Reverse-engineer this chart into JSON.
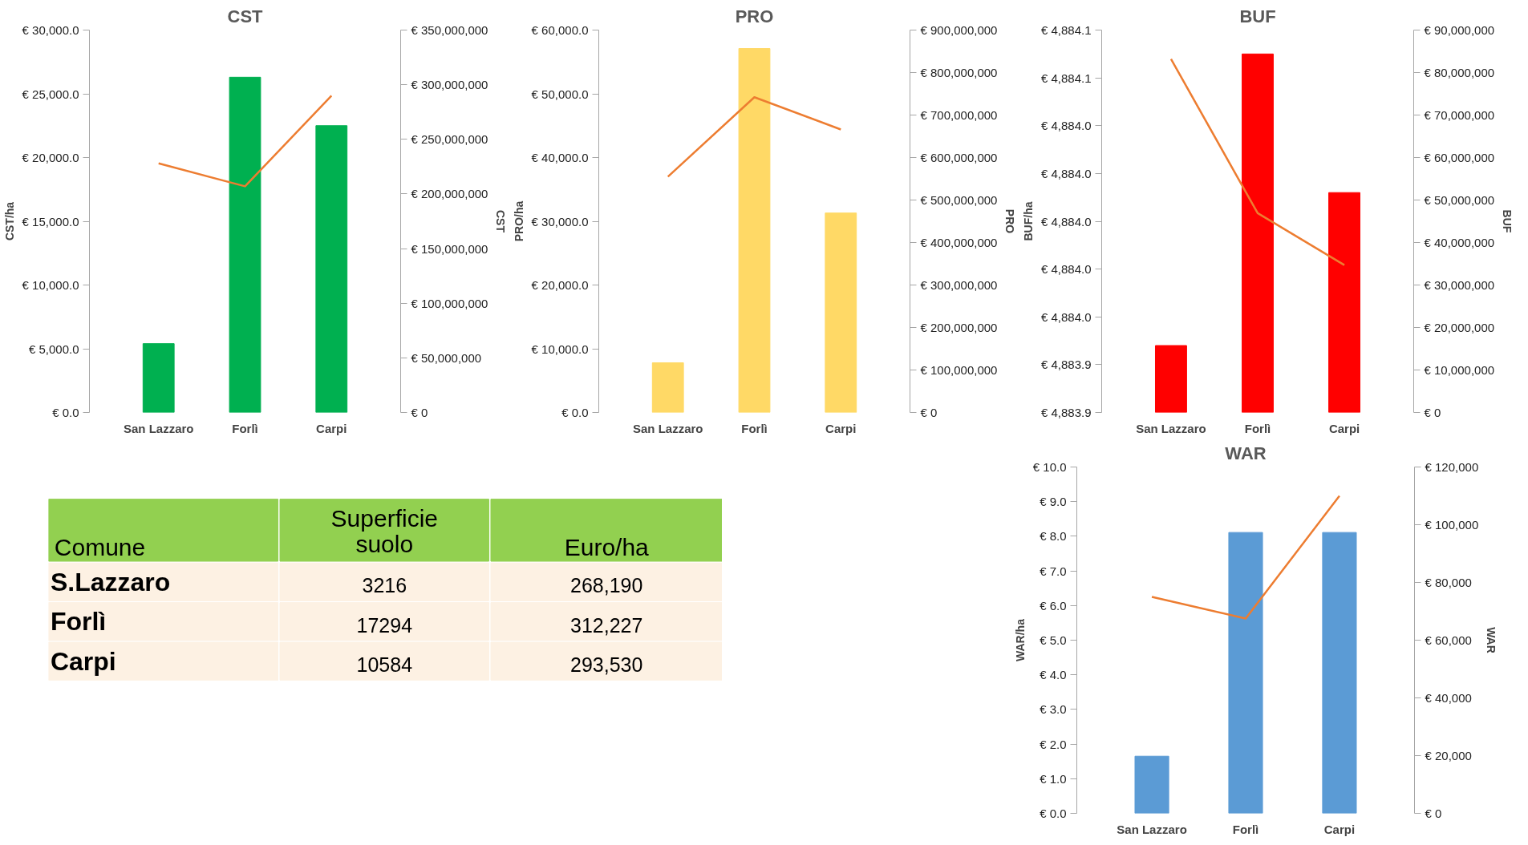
{
  "chart_data": [
    {
      "type": "bar",
      "title": "CST",
      "ylabel": "CST/ha",
      "y2label": "CST",
      "categories": [
        "San Lazzaro",
        "Forlì",
        "Carpi"
      ],
      "series": [
        {
          "color": "#00b050",
          "values": [
            5400,
            26300,
            22500
          ]
        },
        {
          "type": "line",
          "axis": "y2",
          "color": "#ed7d31",
          "values": [
            228000000,
            207000000,
            290000000
          ]
        }
      ],
      "ylim": [
        0,
        30000
      ],
      "yticks": [
        {
          "value": 0,
          "label": "€ 0.0"
        },
        {
          "value": 5000,
          "label": "€ 5,000.0"
        },
        {
          "value": 10000,
          "label": "€ 10,000.0"
        },
        {
          "value": 15000,
          "label": "€ 15,000.0"
        },
        {
          "value": 20000,
          "label": "€ 20,000.0"
        },
        {
          "value": 25000,
          "label": "€ 25,000.0"
        },
        {
          "value": 30000,
          "label": "€ 30,000.0"
        }
      ],
      "y2lim": [
        0,
        350000000
      ],
      "y2ticks": [
        {
          "value": 0,
          "label": "€ 0"
        },
        {
          "value": 50000000,
          "label": "€ 50,000,000"
        },
        {
          "value": 100000000,
          "label": "€ 100,000,000"
        },
        {
          "value": 150000000,
          "label": "€ 150,000,000"
        },
        {
          "value": 200000000,
          "label": "€ 200,000,000"
        },
        {
          "value": 250000000,
          "label": "€ 250,000,000"
        },
        {
          "value": 300000000,
          "label": "€ 300,000,000"
        },
        {
          "value": 350000000,
          "label": "€ 350,000,000"
        }
      ]
    },
    {
      "type": "bar",
      "title": "PRO",
      "ylabel": "PRO/ha",
      "y2label": "PRO",
      "categories": [
        "San Lazzaro",
        "Forlì",
        "Carpi"
      ],
      "series": [
        {
          "color": "#ffd966",
          "values": [
            7800,
            57100,
            31300
          ]
        },
        {
          "type": "line",
          "axis": "y2",
          "color": "#ed7d31",
          "values": [
            555000000,
            742000000,
            666000000
          ]
        }
      ],
      "ylim": [
        0,
        60000
      ],
      "yticks": [
        {
          "value": 0,
          "label": "€ 0.0"
        },
        {
          "value": 10000,
          "label": "€ 10,000.0"
        },
        {
          "value": 20000,
          "label": "€ 20,000.0"
        },
        {
          "value": 30000,
          "label": "€ 30,000.0"
        },
        {
          "value": 40000,
          "label": "€ 40,000.0"
        },
        {
          "value": 50000,
          "label": "€ 50,000.0"
        },
        {
          "value": 60000,
          "label": "€ 60,000.0"
        }
      ],
      "y2lim": [
        0,
        900000000
      ],
      "y2ticks": [
        {
          "value": 0,
          "label": "€ 0"
        },
        {
          "value": 100000000,
          "label": "€ 100,000,000"
        },
        {
          "value": 200000000,
          "label": "€ 200,000,000"
        },
        {
          "value": 300000000,
          "label": "€ 300,000,000"
        },
        {
          "value": 400000000,
          "label": "€ 400,000,000"
        },
        {
          "value": 500000000,
          "label": "€ 500,000,000"
        },
        {
          "value": 600000000,
          "label": "€ 600,000,000"
        },
        {
          "value": 700000000,
          "label": "€ 700,000,000"
        },
        {
          "value": 800000000,
          "label": "€ 800,000,000"
        },
        {
          "value": 900000000,
          "label": "€ 900,000,000"
        }
      ]
    },
    {
      "type": "bar",
      "title": "BUF",
      "ylabel": "BUF/ha",
      "y2label": "BUF",
      "categories": [
        "San Lazzaro",
        "Forlì",
        "Carpi"
      ],
      "series": [
        {
          "color": "#ff0000",
          "values": [
            4883.948,
            4884.07,
            4884.012
          ]
        },
        {
          "type": "line",
          "axis": "y2",
          "color": "#ed7d31",
          "values": [
            83200000,
            46900000,
            34700000
          ]
        }
      ],
      "ylim": [
        4883.92,
        4884.08
      ],
      "yticks": [
        {
          "value": 4883.92,
          "label": "€ 4,883.9"
        },
        {
          "value": 4883.94,
          "label": "€ 4,883.9"
        },
        {
          "value": 4883.96,
          "label": "€ 4,884.0"
        },
        {
          "value": 4883.98,
          "label": "€ 4,884.0"
        },
        {
          "value": 4884.0,
          "label": "€ 4,884.0"
        },
        {
          "value": 4884.02,
          "label": "€ 4,884.0"
        },
        {
          "value": 4884.04,
          "label": "€ 4,884.0"
        },
        {
          "value": 4884.06,
          "label": "€ 4,884.1"
        },
        {
          "value": 4884.08,
          "label": "€ 4,884.1"
        }
      ],
      "y2lim": [
        0,
        90000000
      ],
      "y2ticks": [
        {
          "value": 0,
          "label": "€ 0"
        },
        {
          "value": 10000000,
          "label": "€ 10,000,000"
        },
        {
          "value": 20000000,
          "label": "€ 20,000,000"
        },
        {
          "value": 30000000,
          "label": "€ 30,000,000"
        },
        {
          "value": 40000000,
          "label": "€ 40,000,000"
        },
        {
          "value": 50000000,
          "label": "€ 50,000,000"
        },
        {
          "value": 60000000,
          "label": "€ 60,000,000"
        },
        {
          "value": 70000000,
          "label": "€ 70,000,000"
        },
        {
          "value": 80000000,
          "label": "€ 80,000,000"
        },
        {
          "value": 90000000,
          "label": "€ 90,000,000"
        }
      ]
    },
    {
      "type": "other",
      "xlabel": "Comune",
      "data_labels": true,
      "categories": [
        "S.Lazzaro",
        "Forlì",
        "Carpi"
      ],
      "series": [
        {
          "name": "Superficie suolo",
          "values": [
            3216,
            17294,
            10584
          ]
        },
        {
          "name": "Euro/ha",
          "values": [
            268190,
            312227,
            293530
          ],
          "value_labels": [
            "268,190",
            "312,227",
            "293,530"
          ]
        }
      ]
    },
    {
      "type": "bar",
      "title": "WAR",
      "ylabel": "WAR/ha",
      "y2label": "WAR",
      "categories": [
        "San Lazzaro",
        "Forlì",
        "Carpi"
      ],
      "series": [
        {
          "color": "#5b9bd5",
          "values": [
            1.65,
            8.11,
            8.11
          ]
        },
        {
          "type": "line",
          "axis": "y2",
          "color": "#ed7d31",
          "values": [
            75000,
            67500,
            110000
          ]
        }
      ],
      "ylim": [
        0,
        10
      ],
      "yticks": [
        {
          "value": 0,
          "label": "€ 0.0"
        },
        {
          "value": 1,
          "label": "€ 1.0"
        },
        {
          "value": 2,
          "label": "€ 2.0"
        },
        {
          "value": 3,
          "label": "€ 3.0"
        },
        {
          "value": 4,
          "label": "€ 4.0"
        },
        {
          "value": 5,
          "label": "€ 5.0"
        },
        {
          "value": 6,
          "label": "€ 6.0"
        },
        {
          "value": 7,
          "label": "€ 7.0"
        },
        {
          "value": 8,
          "label": "€ 8.0"
        },
        {
          "value": 9,
          "label": "€ 9.0"
        },
        {
          "value": 10,
          "label": "€ 10.0"
        }
      ],
      "y2lim": [
        0,
        120000
      ],
      "y2ticks": [
        {
          "value": 0,
          "label": "€ 0"
        },
        {
          "value": 20000,
          "label": "€ 20,000"
        },
        {
          "value": 40000,
          "label": "€ 40,000"
        },
        {
          "value": 60000,
          "label": "€ 60,000"
        },
        {
          "value": 80000,
          "label": "€ 80,000"
        },
        {
          "value": 100000,
          "label": "€ 100,000"
        },
        {
          "value": 120000,
          "label": "€ 120,000"
        }
      ]
    }
  ]
}
